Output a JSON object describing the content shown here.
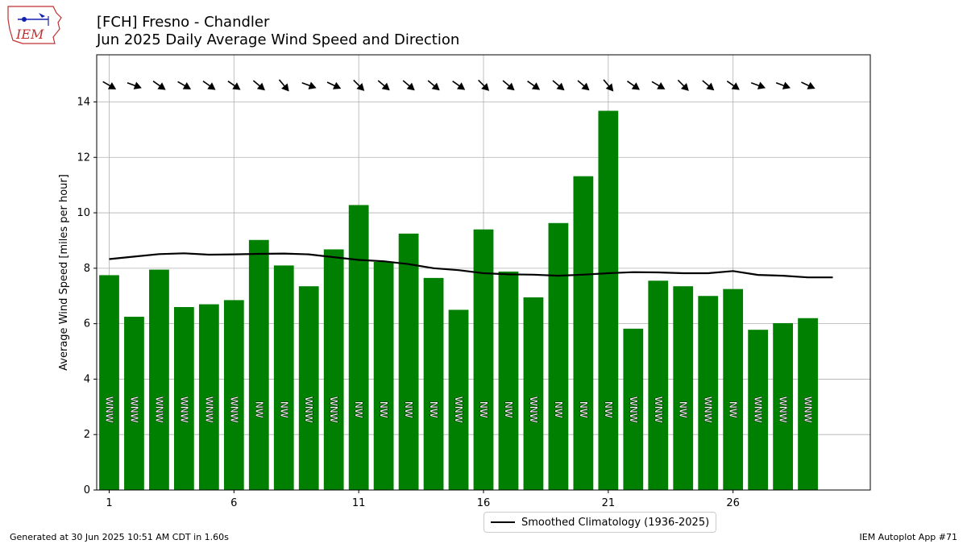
{
  "header": {
    "title_line1": "[FCH] Fresno - Chandler",
    "title_line2": "Jun 2025 Daily Average Wind Speed and Direction",
    "logo_text": "IEM"
  },
  "footer": {
    "generated": "Generated at 30 Jun 2025 10:51 AM CDT in 1.60s",
    "app": "IEM Autoplot App #71"
  },
  "colors": {
    "bar": "#008000",
    "line": "#000000",
    "grid": "#b0b0b0"
  },
  "chart_data": {
    "type": "bar",
    "ylabel": "Average Wind Speed [miles per hour]",
    "ylim": [
      0,
      15.7
    ],
    "xlim": [
      0.5,
      31.5
    ],
    "yticks": [
      0,
      2,
      4,
      6,
      8,
      10,
      12,
      14
    ],
    "xticks": [
      1,
      6,
      11,
      16,
      21,
      26
    ],
    "grid": true,
    "legend_position": "bottom-center",
    "days": [
      1,
      2,
      3,
      4,
      5,
      6,
      7,
      8,
      9,
      10,
      11,
      12,
      13,
      14,
      15,
      16,
      17,
      18,
      19,
      20,
      21,
      22,
      23,
      24,
      25,
      26,
      27,
      28,
      29
    ],
    "speed": [
      7.75,
      6.25,
      7.95,
      6.6,
      6.7,
      6.85,
      9.02,
      8.1,
      7.35,
      8.68,
      10.28,
      8.23,
      9.25,
      7.65,
      6.5,
      9.4,
      7.88,
      6.95,
      9.63,
      11.32,
      13.68,
      5.82,
      7.55,
      7.35,
      7.0,
      7.25,
      5.78,
      6.02,
      6.2
    ],
    "direction_label": [
      "WNW",
      "WNW",
      "WNW",
      "WNW",
      "WNW",
      "WNW",
      "NW",
      "NW",
      "WNW",
      "WNW",
      "NW",
      "NW",
      "NW",
      "NW",
      "WNW",
      "NW",
      "NW",
      "WNW",
      "NW",
      "NW",
      "NW",
      "WNW",
      "WNW",
      "NW",
      "WNW",
      "NW",
      "WNW",
      "WNW",
      "WNW"
    ],
    "direction_deg": [
      300,
      290,
      305,
      300,
      305,
      305,
      310,
      320,
      290,
      295,
      315,
      310,
      310,
      310,
      305,
      315,
      310,
      305,
      310,
      310,
      320,
      305,
      300,
      315,
      310,
      305,
      290,
      290,
      295
    ],
    "climatology": {
      "name": "Smoothed Climatology (1936-2025)",
      "x": [
        1,
        2,
        3,
        4,
        5,
        6,
        7,
        8,
        9,
        10,
        11,
        12,
        13,
        14,
        15,
        16,
        17,
        18,
        19,
        20,
        21,
        22,
        23,
        24,
        25,
        26,
        27,
        28,
        29,
        30
      ],
      "values": [
        8.33,
        8.42,
        8.51,
        8.54,
        8.49,
        8.5,
        8.52,
        8.53,
        8.5,
        8.4,
        8.3,
        8.25,
        8.15,
        8.0,
        7.93,
        7.82,
        7.78,
        7.77,
        7.73,
        7.77,
        7.82,
        7.86,
        7.85,
        7.82,
        7.82,
        7.9,
        7.76,
        7.73,
        7.67,
        7.67
      ]
    }
  }
}
